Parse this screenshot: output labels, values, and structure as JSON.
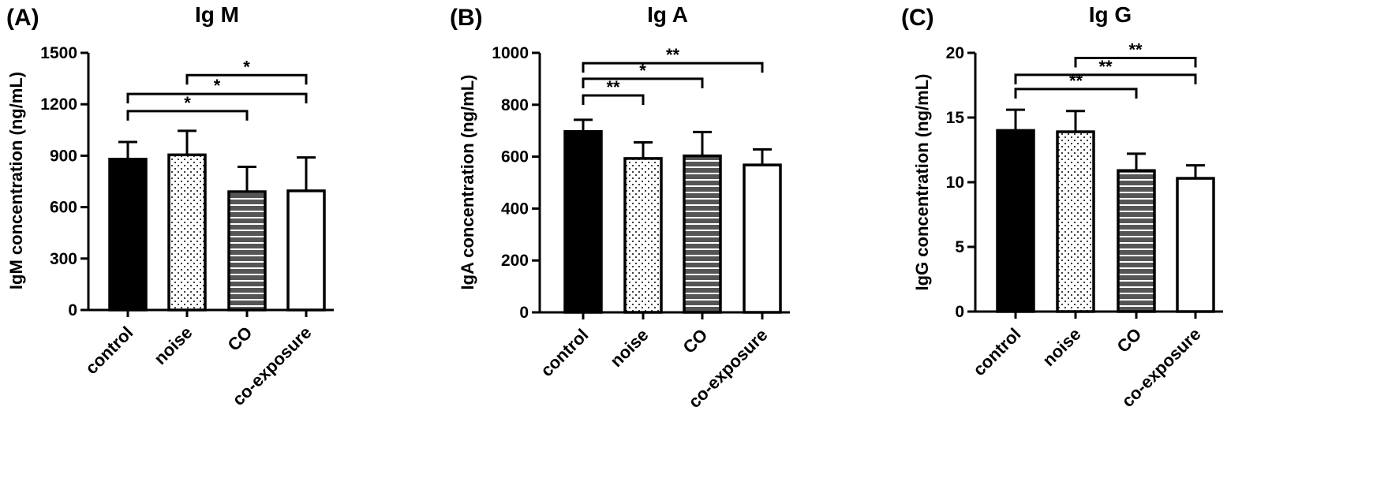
{
  "chart_data": [
    {
      "type": "bar",
      "panel_label": "(A)",
      "title": "Ig M",
      "ylabel": "IgM concentration (ng/mL)",
      "xlabel": "",
      "categories": [
        "control",
        "noise",
        "CO",
        "co-exposure"
      ],
      "values": [
        880,
        905,
        690,
        695
      ],
      "errors": [
        100,
        140,
        145,
        195
      ],
      "ylim": [
        0,
        1500
      ],
      "yticks": [
        0,
        300,
        600,
        900,
        1200,
        1500
      ],
      "ytick_labels": [
        "0",
        "300",
        "600",
        "900",
        "1200",
        "1500"
      ],
      "fills": [
        "solid",
        "dots",
        "stripes",
        "white"
      ],
      "significance": [
        {
          "from": 0,
          "to": 2,
          "y": 1160,
          "label": "*"
        },
        {
          "from": 0,
          "to": 3,
          "y": 1260,
          "label": "*"
        },
        {
          "from": 1,
          "to": 3,
          "y": 1370,
          "label": "*"
        }
      ]
    },
    {
      "type": "bar",
      "panel_label": "(B)",
      "title": "Ig A",
      "ylabel": "IgA concentration (ng/mL)",
      "xlabel": "",
      "categories": [
        "control",
        "noise",
        "CO",
        "co-exposure"
      ],
      "values": [
        697,
        593,
        603,
        568
      ],
      "errors": [
        45,
        62,
        92,
        60
      ],
      "ylim": [
        0,
        1000
      ],
      "yticks": [
        0,
        200,
        400,
        600,
        800,
        1000
      ],
      "ytick_labels": [
        "0",
        "200",
        "400",
        "600",
        "800",
        "1000"
      ],
      "fills": [
        "solid",
        "dots",
        "stripes",
        "white"
      ],
      "significance": [
        {
          "from": 0,
          "to": 1,
          "y": 836,
          "label": "**"
        },
        {
          "from": 0,
          "to": 2,
          "y": 900,
          "label": "*"
        },
        {
          "from": 0,
          "to": 3,
          "y": 960,
          "label": "**"
        }
      ]
    },
    {
      "type": "bar",
      "panel_label": "(C)",
      "title": "Ig G",
      "ylabel": "IgG concentration (ng/mL)",
      "xlabel": "",
      "categories": [
        "control",
        "noise",
        "CO",
        "co-exposure"
      ],
      "values": [
        14.0,
        13.9,
        10.9,
        10.3
      ],
      "errors": [
        1.6,
        1.6,
        1.3,
        1.0
      ],
      "ylim": [
        0,
        20
      ],
      "yticks": [
        0,
        5,
        10,
        15,
        20
      ],
      "ytick_labels": [
        "0",
        "5",
        "10",
        "15",
        "20"
      ],
      "fills": [
        "solid",
        "dots",
        "stripes",
        "white"
      ],
      "significance": [
        {
          "from": 0,
          "to": 2,
          "y": 17.2,
          "label": "**"
        },
        {
          "from": 0,
          "to": 3,
          "y": 18.3,
          "label": "**"
        },
        {
          "from": 1,
          "to": 3,
          "y": 19.6,
          "label": "**"
        }
      ]
    }
  ]
}
